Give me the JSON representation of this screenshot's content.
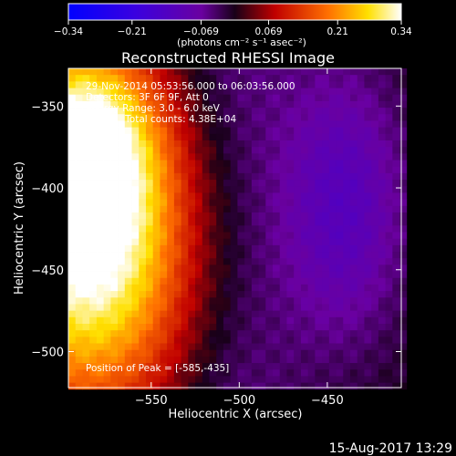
{
  "chart_data": {
    "type": "heatmap",
    "title": "Reconstructed RHESSI Image",
    "xlabel": "Heliocentric X (arcsec)",
    "ylabel": "Heliocentric Y (arcsec)",
    "xlim": [
      -597,
      -408
    ],
    "ylim": [
      -522,
      -327
    ],
    "x_ticks": [
      -550,
      -500,
      -450
    ],
    "x_tick_labels": [
      "−550",
      "−500",
      "−450"
    ],
    "y_ticks": [
      -350,
      -400,
      -450,
      -500
    ],
    "y_tick_labels": [
      "−350",
      "−400",
      "−450",
      "−500"
    ],
    "colorbar": {
      "min": -0.34,
      "max": 0.34,
      "ticks": [
        -0.34,
        -0.21,
        -0.069,
        0.069,
        0.21,
        0.34
      ],
      "tick_labels": [
        "−0.34",
        "−0.21",
        "−0.069",
        "0.069",
        "0.21",
        "0.34"
      ],
      "unit_label": "(photons cm⁻² s⁻¹ asec⁻²)"
    },
    "annotations": [
      "29-Nov-2014 05:53:56.000 to 06:03:56.000",
      "Detectors: 3F 6F 9F, Att 0",
      "Energy Range: 3.0 - 6.0 keV",
      "Clean    Total counts: 4.38E+04"
    ],
    "peak_label": "Position of Peak = [-585,-435]",
    "peak": {
      "x": -585,
      "y": -435
    }
  },
  "footer": {
    "timestamp": "15-Aug-2017 13:29"
  }
}
